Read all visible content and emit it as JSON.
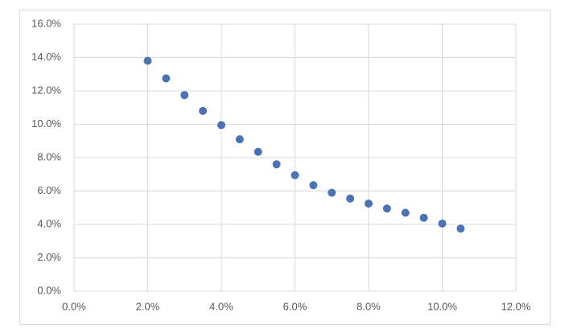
{
  "chart_data": {
    "type": "scatter",
    "x": [
      2.0,
      2.5,
      3.0,
      3.5,
      4.0,
      4.5,
      5.0,
      5.5,
      6.0,
      6.5,
      7.0,
      7.5,
      8.0,
      8.5,
      9.0,
      9.5,
      10.0,
      10.5
    ],
    "values": [
      13.8,
      12.75,
      11.75,
      10.8,
      9.95,
      9.1,
      8.35,
      7.6,
      6.95,
      6.35,
      5.9,
      5.55,
      5.25,
      4.95,
      4.7,
      4.4,
      4.05,
      3.75
    ],
    "color": "#4a72b5",
    "xlim": [
      0,
      12
    ],
    "ylim": [
      0,
      16
    ],
    "xticks": [
      {
        "value": 0,
        "label": "0.0%"
      },
      {
        "value": 2,
        "label": "2.0%"
      },
      {
        "value": 4,
        "label": "4.0%"
      },
      {
        "value": 6,
        "label": "6.0%"
      },
      {
        "value": 8,
        "label": "8.0%"
      },
      {
        "value": 10,
        "label": "10.0%"
      },
      {
        "value": 12,
        "label": "12.0%"
      }
    ],
    "yticks": [
      {
        "value": 0,
        "label": "0.0%"
      },
      {
        "value": 2,
        "label": "2.0%"
      },
      {
        "value": 4,
        "label": "4.0%"
      },
      {
        "value": 6,
        "label": "6.0%"
      },
      {
        "value": 8,
        "label": "8.0%"
      },
      {
        "value": 10,
        "label": "10.0%"
      },
      {
        "value": 12,
        "label": "12.0%"
      },
      {
        "value": 14,
        "label": "14.0%"
      },
      {
        "value": 16,
        "label": "16.0%"
      }
    ],
    "grid": true
  }
}
